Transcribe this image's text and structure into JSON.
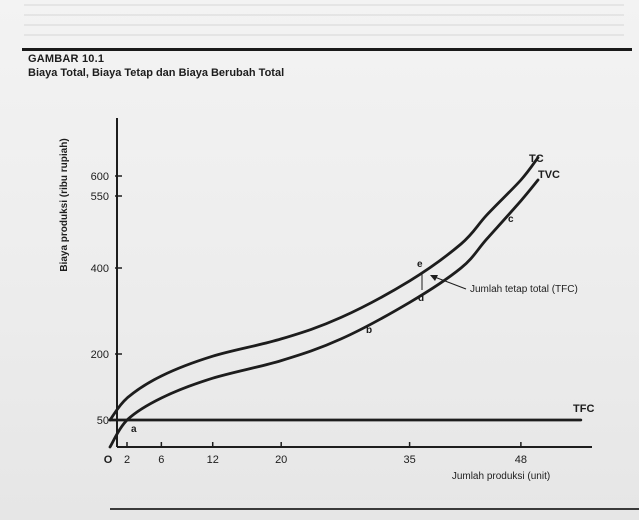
{
  "figure": {
    "number": "GAMBAR 10.1",
    "title": "Biaya Total, Biaya Tetap dan Biaya Berubah Total"
  },
  "chart_data": {
    "type": "line",
    "ylabel": "Biaya produksi (ribu rupiah)",
    "xlabel": "Jumlah produksi (unit)",
    "x_ticks": [
      0,
      2,
      6,
      12,
      20,
      35,
      48
    ],
    "y_ticks": [
      50,
      200,
      400,
      550,
      600
    ],
    "xlim": [
      0,
      55
    ],
    "ylim": [
      0,
      650
    ],
    "series": [
      {
        "name": "TC",
        "x": [
          0,
          2,
          6,
          12,
          20,
          27,
          35,
          41,
          44,
          48,
          50
        ],
        "y": [
          50,
          100,
          150,
          195,
          235,
          285,
          370,
          450,
          510,
          590,
          640
        ]
      },
      {
        "name": "TVC",
        "x": [
          0,
          2,
          6,
          12,
          20,
          27,
          35,
          41,
          44,
          48,
          50
        ],
        "y": [
          0,
          50,
          100,
          145,
          185,
          235,
          320,
          400,
          460,
          540,
          590
        ]
      },
      {
        "name": "TFC",
        "x": [
          0,
          55
        ],
        "y": [
          50,
          50
        ]
      }
    ],
    "annotations": [
      {
        "text": "Jumlah tetap total (TFC)"
      },
      {
        "text": "a"
      },
      {
        "text": "b"
      },
      {
        "text": "c"
      },
      {
        "text": "d"
      },
      {
        "text": "e"
      }
    ],
    "grid": false,
    "origin_label": "O"
  },
  "colors": {
    "ink": "#1d1d1d",
    "paper": "#efefef"
  }
}
